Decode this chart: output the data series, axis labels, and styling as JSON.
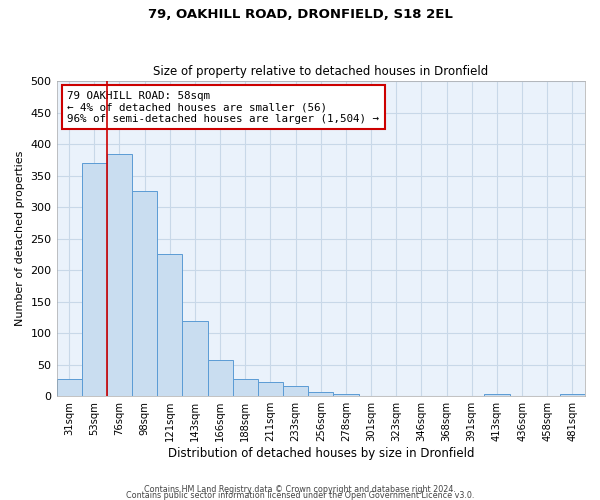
{
  "title1": "79, OAKHILL ROAD, DRONFIELD, S18 2EL",
  "title2": "Size of property relative to detached houses in Dronfield",
  "xlabel": "Distribution of detached houses by size in Dronfield",
  "ylabel": "Number of detached properties",
  "bar_labels": [
    "31sqm",
    "53sqm",
    "76sqm",
    "98sqm",
    "121sqm",
    "143sqm",
    "166sqm",
    "188sqm",
    "211sqm",
    "233sqm",
    "256sqm",
    "278sqm",
    "301sqm",
    "323sqm",
    "346sqm",
    "368sqm",
    "391sqm",
    "413sqm",
    "436sqm",
    "458sqm",
    "481sqm"
  ],
  "bar_values": [
    28,
    370,
    385,
    325,
    225,
    120,
    58,
    28,
    22,
    16,
    6,
    4,
    0,
    0,
    0,
    0,
    0,
    4,
    0,
    0,
    4
  ],
  "bar_color": "#c9ddf0",
  "bar_edge_color": "#5b9bd5",
  "grid_color": "#c8d8e8",
  "background_color": "#eaf2fb",
  "vline_x": 1.5,
  "vline_color": "#cc0000",
  "annotation_line1": "79 OAKHILL ROAD: 58sqm",
  "annotation_line2": "← 4% of detached houses are smaller (56)",
  "annotation_line3": "96% of semi-detached houses are larger (1,504) →",
  "annotation_box_color": "#ffffff",
  "annotation_box_edge": "#cc0000",
  "ylim": [
    0,
    500
  ],
  "yticks": [
    0,
    50,
    100,
    150,
    200,
    250,
    300,
    350,
    400,
    450,
    500
  ],
  "footnote1": "Contains HM Land Registry data © Crown copyright and database right 2024.",
  "footnote2": "Contains public sector information licensed under the Open Government Licence v3.0."
}
